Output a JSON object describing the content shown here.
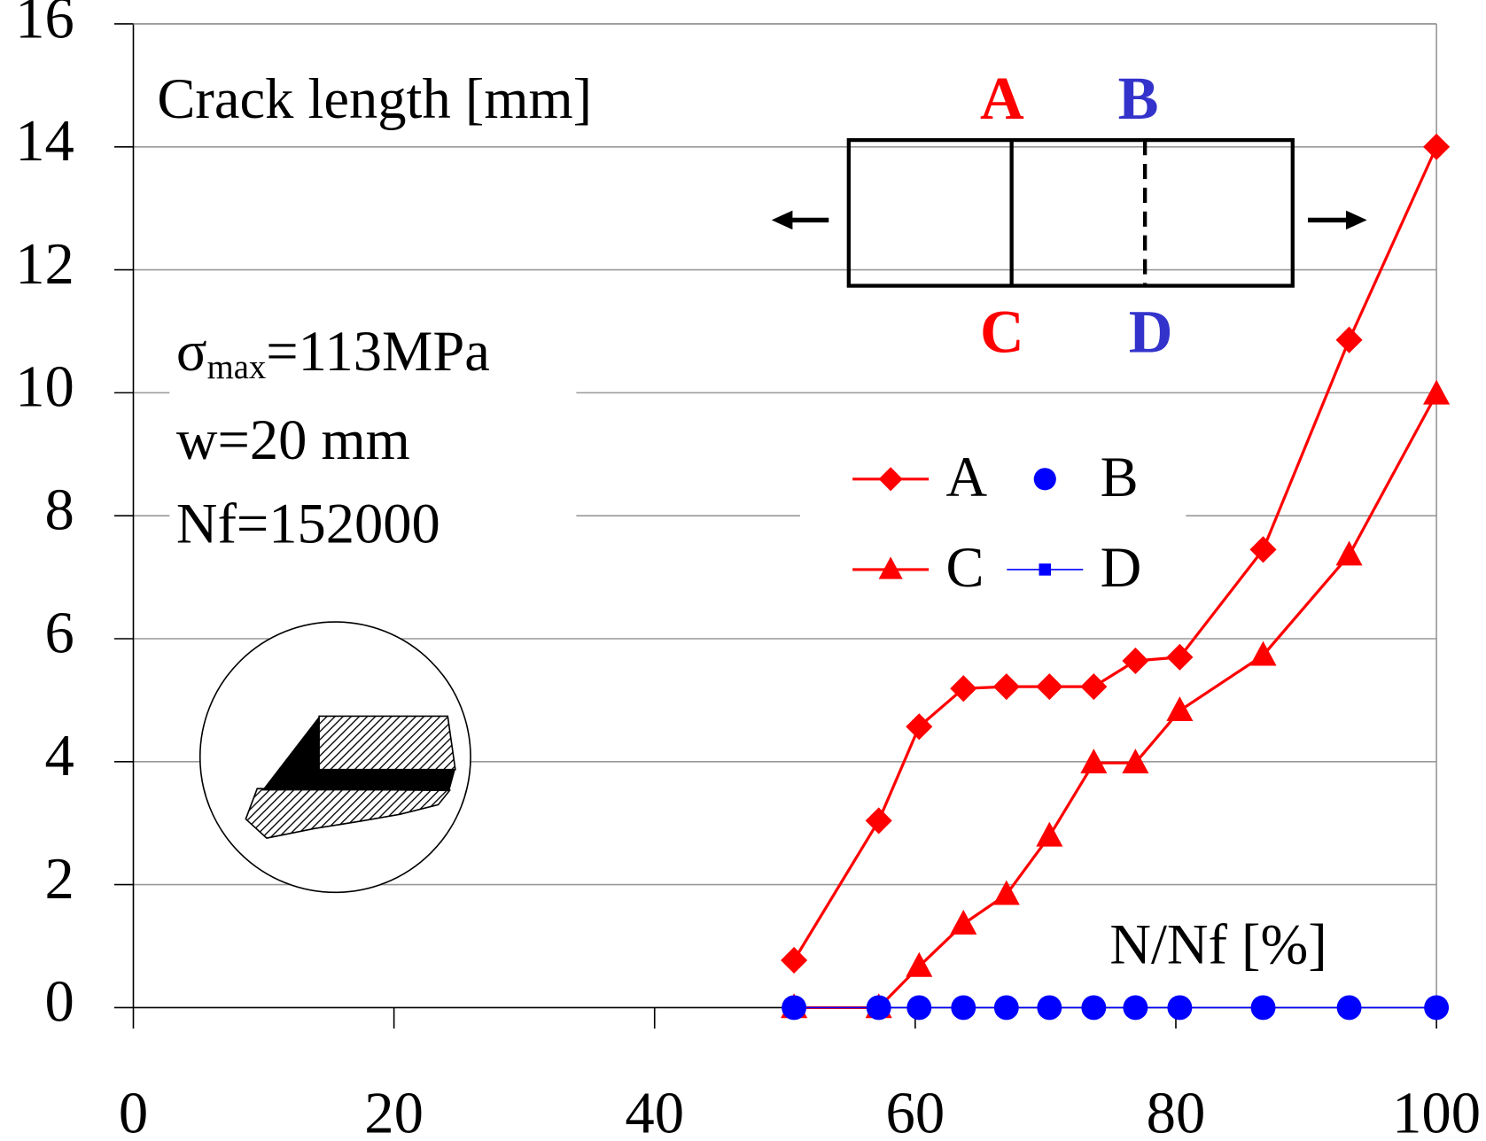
{
  "chart_data": {
    "type": "line",
    "title": "Crack length [mm]",
    "x_label": "N/Nf [%]",
    "annotations": {
      "sigma": "σ",
      "sigma_sub": "max",
      "sigma_value": "=113MPa",
      "width": "w=20 mm",
      "cycles": "Nf=152000"
    },
    "diagram_labels": [
      {
        "text": "A",
        "color": "#ff0000"
      },
      {
        "text": "B",
        "color": "#3333cc"
      },
      {
        "text": "C",
        "color": "#ff0000"
      },
      {
        "text": "D",
        "color": "#3333cc"
      }
    ],
    "x": [
      50.7,
      57.2,
      60.3,
      63.7,
      67.0,
      70.3,
      73.7,
      76.9,
      80.3,
      86.7,
      93.3,
      100
    ],
    "series": [
      {
        "name": "A",
        "color": "#ff0000",
        "marker": "diamond",
        "line": true,
        "values": [
          0.77,
          3.04,
          4.57,
          5.19,
          5.22,
          5.22,
          5.22,
          5.64,
          5.7,
          7.45,
          10.86,
          14.0
        ]
      },
      {
        "name": "B",
        "color": "#0000ff",
        "marker": "circle",
        "line": false,
        "values": [
          0,
          0,
          0,
          0,
          0,
          0,
          0,
          0,
          0,
          0,
          0,
          0
        ]
      },
      {
        "name": "C",
        "color": "#ff0000",
        "marker": "triangle",
        "line": true,
        "values": [
          0,
          0,
          0.67,
          1.36,
          1.84,
          2.79,
          3.98,
          3.98,
          4.83,
          5.73,
          7.36,
          9.98
        ]
      },
      {
        "name": "D",
        "color": "#0000ff",
        "marker": "square",
        "line": true,
        "values": [
          0,
          0,
          0,
          0,
          0,
          0,
          0,
          0,
          0,
          0,
          0,
          0
        ]
      }
    ],
    "xlim": [
      0,
      100
    ],
    "xticks": [
      0,
      20,
      40,
      60,
      80,
      100
    ],
    "ylim": [
      0,
      16
    ],
    "yticks": [
      0,
      2,
      4,
      6,
      8,
      10,
      12,
      14,
      16
    ],
    "grid": true
  }
}
